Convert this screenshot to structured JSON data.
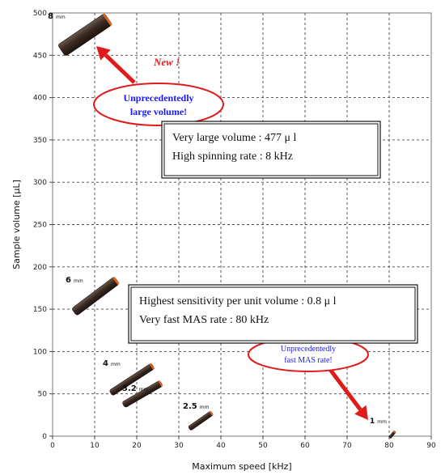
{
  "chart_data": {
    "type": "scatter",
    "xlabel": "Maximum speed [kHz]",
    "ylabel": "Sample volume  [μL]",
    "xlim": [
      0,
      90
    ],
    "ylim": [
      0,
      500
    ],
    "xticks": [
      "0",
      "10",
      "20",
      "30",
      "40",
      "50",
      "60",
      "70",
      "80",
      "90"
    ],
    "yticks": [
      "0",
      "50",
      "100",
      "150",
      "200",
      "250",
      "300",
      "350",
      "400",
      "450",
      "500"
    ],
    "grid": true,
    "points": [
      {
        "size": "8",
        "unit": "mm",
        "x": 8,
        "y": 477
      },
      {
        "size": "6",
        "unit": "mm",
        "x": 10,
        "y": 160
      },
      {
        "size": "4",
        "unit": "mm",
        "x": 19,
        "y": 68
      },
      {
        "size": "3.2",
        "unit": "mm",
        "x": 24,
        "y": 48
      },
      {
        "size": "2.5",
        "unit": "mm",
        "x": 35,
        "y": 16
      },
      {
        "size": "1",
        "unit": "mm",
        "x": 80,
        "y": 0.8
      }
    ],
    "colors": {
      "rotor_body": "#3a2a22",
      "rotor_cap": "#e0641c",
      "arrow": "#e01b1b",
      "new_label": "#e01b1b",
      "callout_text": "#1a1aff",
      "callout_border": "#e01b1b"
    },
    "annotations": {
      "new_label": "New !",
      "callout_large": [
        "Unprecedentedly",
        "large volume!"
      ],
      "callout_fast": [
        "Unprecedentedly",
        "fast MAS rate!"
      ],
      "box_large": [
        "Very large volume :   477  μ l",
        "High spinning rate   :   8 kHz"
      ],
      "box_fast": [
        "Highest sensitivity per unit volume :   0.8   μ l",
        "Very fast MAS rate :   80 kHz"
      ]
    }
  }
}
